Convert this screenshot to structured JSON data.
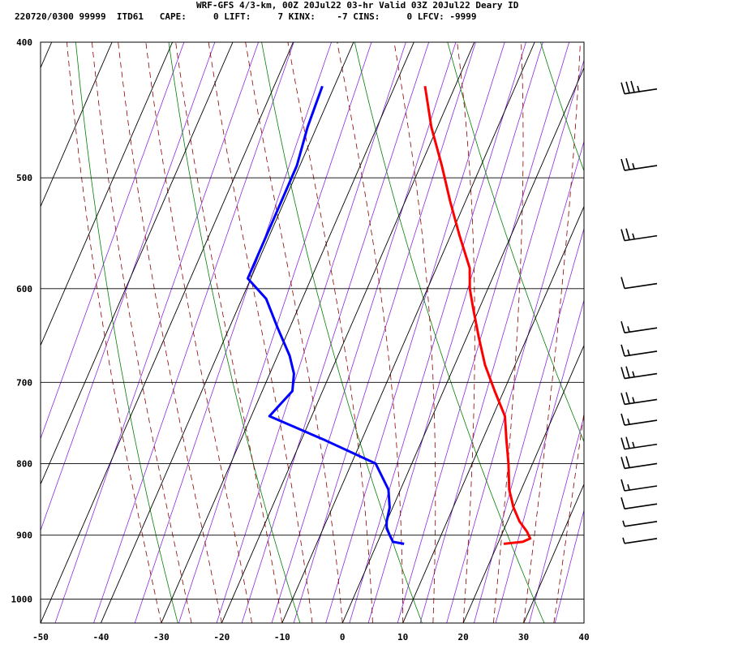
{
  "header": {
    "title_line": "WRF-GFS 4/3-km, 00Z 20Jul22 03-hr Valid 03Z 20Jul22 Deary ID",
    "stats_line": "220720/0300 99999  ITD61   CAPE:     0 LIFT:     7 KINX:    -7 CINS:     0 LFCV: -9999"
  },
  "colors": {
    "temperature": "#ff0000",
    "dewpoint": "#0000ff",
    "isotherm": "#000000",
    "dry_adiabat": "#008000",
    "moist_adiabat": "#8b0000",
    "mixing_ratio": "#8a2be2",
    "wind_barb": "#000000"
  },
  "chart_data": {
    "type": "line",
    "diagram": "Skew-T log-P",
    "title": "WRF-GFS 4/3-km, 00Z 20Jul22 03-hr Valid 03Z 20Jul22 Deary ID",
    "xlabel": "",
    "ylabel": "",
    "x_ticks": [
      -50,
      -40,
      -30,
      -20,
      -10,
      0,
      10,
      20,
      30,
      40
    ],
    "y_ticks": [
      400,
      500,
      600,
      700,
      800,
      900,
      1000
    ],
    "xlim": [
      -50,
      40
    ],
    "ylim": [
      1040,
      400
    ],
    "y_scale": "log",
    "grid": true,
    "series": [
      {
        "role": "temperature",
        "pressure": [
          913,
          910,
          905,
          895,
          880,
          860,
          835,
          800,
          770,
          740,
          710,
          680,
          650,
          620,
          600,
          580,
          550,
          520,
          490,
          460,
          430
        ],
        "values": [
          21,
          24,
          25,
          24,
          22,
          20,
          18,
          16,
          14,
          12,
          8.5,
          5,
          2,
          -1,
          -3,
          -4.5,
          -8.5,
          -12.5,
          -16.5,
          -21,
          -25
        ]
      },
      {
        "role": "dewpoint",
        "pressure": [
          913,
          910,
          900,
          890,
          880,
          860,
          835,
          800,
          770,
          740,
          710,
          690,
          670,
          640,
          610,
          590,
          560,
          520,
          490,
          460,
          430
        ],
        "values": [
          4.5,
          2.5,
          1.5,
          0.5,
          0,
          -0.5,
          -2,
          -6,
          -16,
          -27,
          -25,
          -26,
          -28,
          -32,
          -36,
          -40.5,
          -40.5,
          -40.5,
          -40.5,
          -41.5,
          -42
        ]
      }
    ],
    "wind_barbs": [
      {
        "pressure": 432,
        "speed_kt": 35
      },
      {
        "pressure": 490,
        "speed_kt": 25
      },
      {
        "pressure": 550,
        "speed_kt": 25
      },
      {
        "pressure": 595,
        "speed_kt": 10
      },
      {
        "pressure": 640,
        "speed_kt": 15
      },
      {
        "pressure": 665,
        "speed_kt": 15
      },
      {
        "pressure": 690,
        "speed_kt": 25
      },
      {
        "pressure": 720,
        "speed_kt": 25
      },
      {
        "pressure": 745,
        "speed_kt": 15
      },
      {
        "pressure": 775,
        "speed_kt": 25
      },
      {
        "pressure": 800,
        "speed_kt": 20
      },
      {
        "pressure": 830,
        "speed_kt": 15
      },
      {
        "pressure": 855,
        "speed_kt": 10
      },
      {
        "pressure": 880,
        "speed_kt": 5
      },
      {
        "pressure": 905,
        "speed_kt": 5
      }
    ]
  }
}
